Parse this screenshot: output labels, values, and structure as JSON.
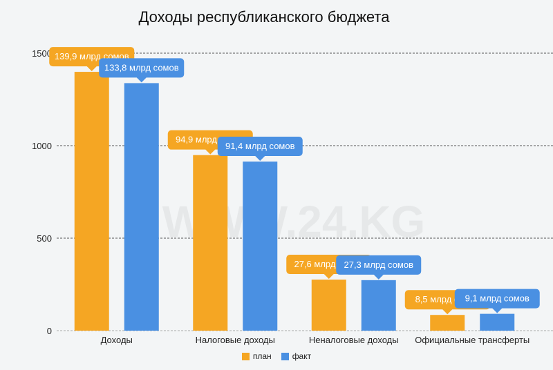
{
  "chart_data": {
    "type": "bar",
    "title": "Доходы республиканского бюджета",
    "categories": [
      "Доходы",
      "Налоговые доходы",
      "Неналоговые доходы",
      "Официальные трансферты"
    ],
    "series": [
      {
        "name": "план",
        "color": "#f5a623",
        "values": [
          1399,
          949,
          276,
          85
        ],
        "labels": [
          "139,9 млрд сомов",
          "94,9 млрд сомов",
          "27,6 млрд сомов",
          "8,5 млрд сомов"
        ]
      },
      {
        "name": "факт",
        "color": "#4a90e2",
        "values": [
          1338,
          914,
          273,
          91
        ],
        "labels": [
          "133,8 млрд сомов",
          "91,4 млрд сомов",
          "27,3 млрд сомов",
          "9,1 млрд сомов"
        ]
      }
    ],
    "yticks": [
      0,
      500,
      1000,
      1500
    ],
    "ylim": [
      0,
      1500
    ],
    "grid": true,
    "legend": "bottom-center",
    "watermark": "WWW.24.KG"
  }
}
